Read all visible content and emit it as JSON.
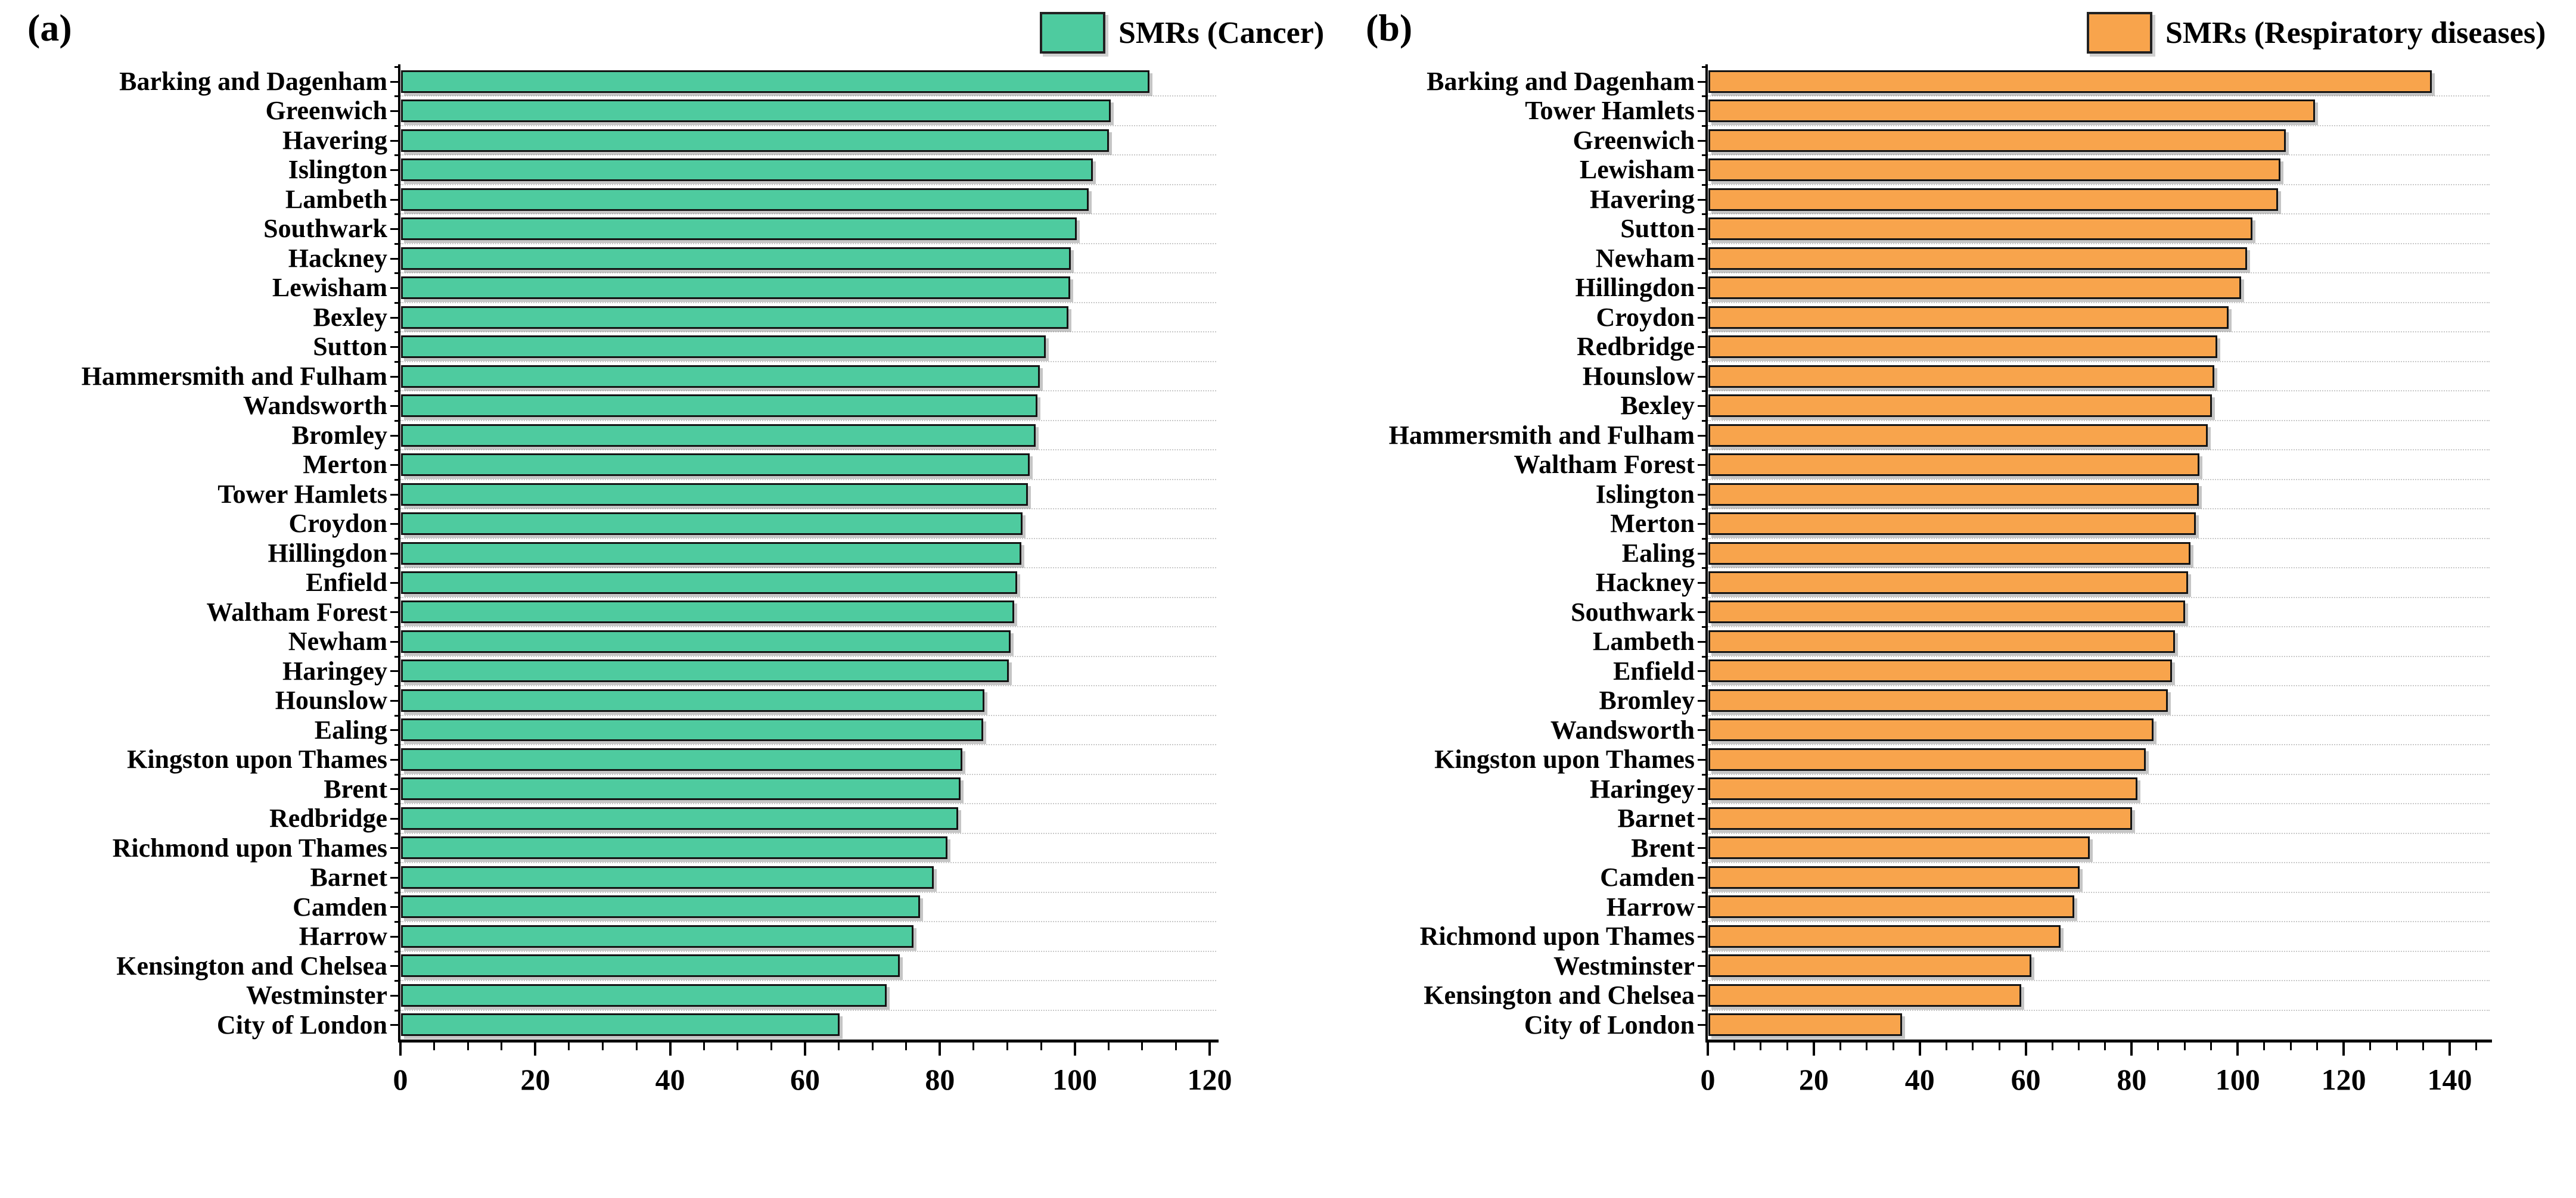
{
  "figure": {
    "background": "#ffffff",
    "panel_letters": [
      "(a)",
      "(b)"
    ]
  },
  "chart_data": [
    {
      "type": "bar",
      "orientation": "horizontal",
      "panel_label": "(a)",
      "legend": "SMRs (Cancer)",
      "legend_position": "top-right",
      "bar_color": "#4ecb9f",
      "bar_border_color": "#141414",
      "grid": "dotted horizontal between categories",
      "xlabel": "",
      "ylabel": "",
      "xlim": [
        0,
        121
      ],
      "x_major_ticks": [
        0,
        20,
        40,
        60,
        80,
        100,
        120
      ],
      "x_minor_step": 5,
      "x_minor_max": 120,
      "categories": [
        "Barking and Dagenham",
        "Greenwich",
        "Havering",
        "Islington",
        "Lambeth",
        "Southwark",
        "Hackney",
        "Lewisham",
        "Bexley",
        "Sutton",
        "Hammersmith and Fulham",
        "Wandsworth",
        "Bromley",
        "Merton",
        "Tower Hamlets",
        "Croydon",
        "Hillingdon",
        "Enfield",
        "Waltham Forest",
        "Newham",
        "Haringey",
        "Hounslow",
        "Ealing",
        "Kingston upon Thames",
        "Brent",
        "Redbridge",
        "Richmond upon Thames",
        "Barnet",
        "Camden",
        "Harrow",
        "Kensington and Chelsea",
        "Westminster",
        "City of London"
      ],
      "values": [
        111,
        105.2,
        105,
        102.6,
        102,
        100.2,
        99.3,
        99.2,
        99,
        95.6,
        94.7,
        94.4,
        94.1,
        93.2,
        93,
        92.2,
        92,
        91.4,
        90.9,
        90.4,
        90.1,
        86.5,
        86.3,
        83.2,
        83,
        82.6,
        81,
        79,
        77,
        76,
        74,
        72,
        65
      ]
    },
    {
      "type": "bar",
      "orientation": "horizontal",
      "panel_label": "(b)",
      "legend": "SMRs (Respiratory diseases)",
      "legend_position": "top-right",
      "bar_color": "#f8a44c",
      "bar_border_color": "#141414",
      "grid": "dotted horizontal between categories",
      "xlabel": "",
      "ylabel": "",
      "xlim": [
        0,
        147.5
      ],
      "x_major_ticks": [
        0,
        20,
        40,
        60,
        80,
        100,
        120,
        140
      ],
      "x_minor_step": 5,
      "x_minor_max": 145,
      "categories": [
        "Barking and Dagenham",
        "Tower Hamlets",
        "Greenwich",
        "Lewisham",
        "Havering",
        "Sutton",
        "Newham",
        "Hillingdon",
        "Croydon",
        "Redbridge",
        "Hounslow",
        "Bexley",
        "Hammersmith and Fulham",
        "Waltham Forest",
        "Islington",
        "Merton",
        "Ealing",
        "Hackney",
        "Southwark",
        "Lambeth",
        "Enfield",
        "Bromley",
        "Wandsworth",
        "Kingston upon Thames",
        "Haringey",
        "Barnet",
        "Brent",
        "Camden",
        "Harrow",
        "Richmond upon Thames",
        "Westminster",
        "Kensington and Chelsea",
        "City of London"
      ],
      "values": [
        136.5,
        114.5,
        109,
        108,
        107.5,
        102.7,
        101.6,
        100.5,
        98.2,
        96,
        95.5,
        95,
        94.2,
        92.7,
        92.5,
        92,
        91,
        90.5,
        90,
        88,
        87.5,
        86.7,
        84,
        82.5,
        81,
        80,
        72,
        70,
        69,
        66.5,
        61,
        59,
        36.5
      ]
    }
  ]
}
